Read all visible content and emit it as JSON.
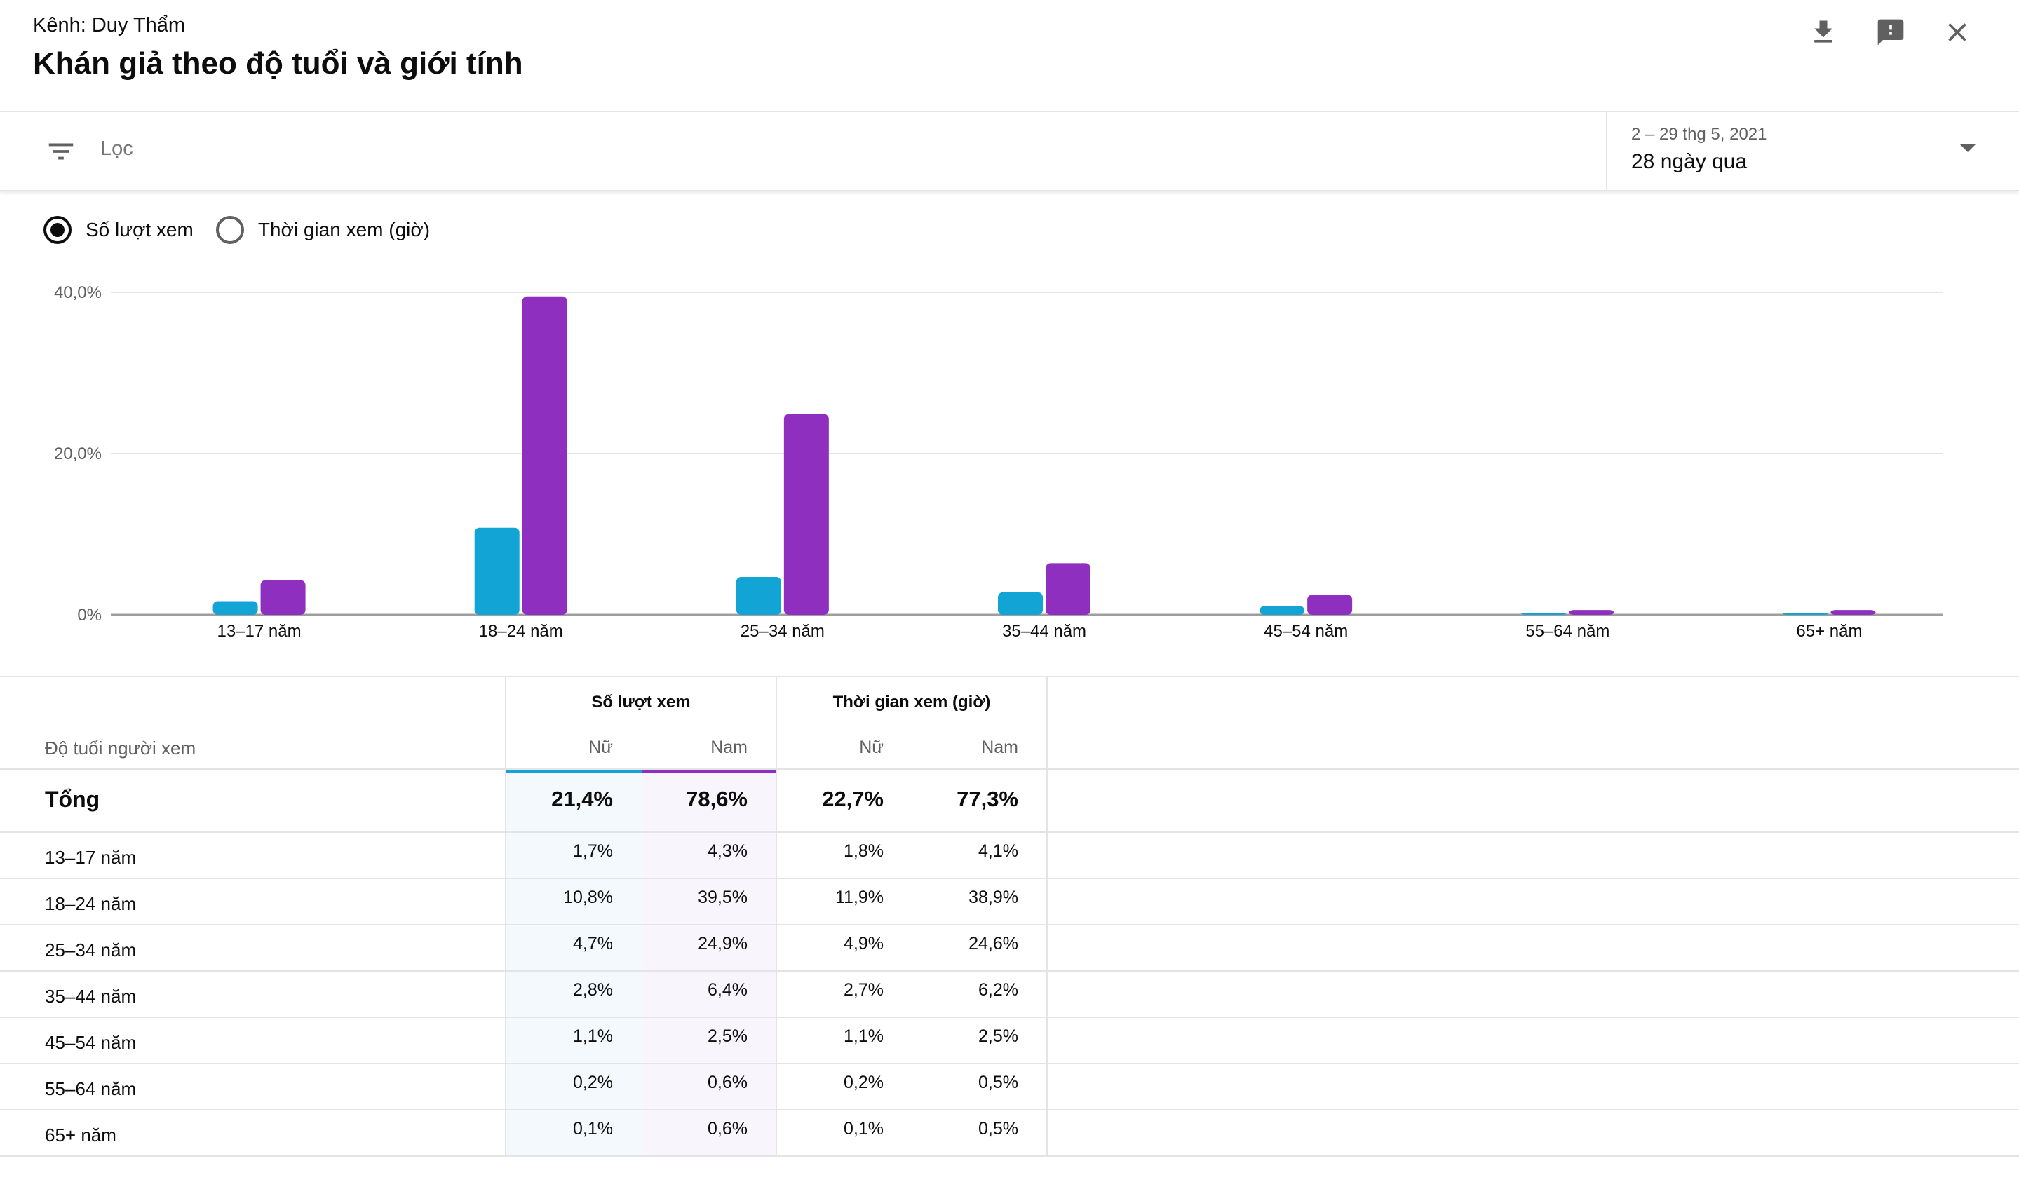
{
  "header": {
    "channel": "Kênh: Duy Thẩm",
    "title": "Khán giả theo độ tuổi và giới tính",
    "icons": [
      "download-icon",
      "feedback-icon",
      "close-icon"
    ]
  },
  "filter": {
    "placeholder": "Lọc",
    "date_range": "2 – 29 thg 5, 2021",
    "date_label": "28 ngày qua"
  },
  "metric_toggle": {
    "options": [
      "Số lượt xem",
      "Thời gian xem (giờ)"
    ],
    "selected": "Số lượt xem"
  },
  "colors": {
    "female": "#12a4d4",
    "male": "#8e2fc0"
  },
  "chart_data": {
    "type": "bar",
    "categories": [
      "13–17 năm",
      "18–24 năm",
      "25–34 năm",
      "35–44 năm",
      "45–54 năm",
      "55–64 năm",
      "65+ năm"
    ],
    "series": [
      {
        "values": [
          1.7,
          10.8,
          4.7,
          2.8,
          1.1,
          0.2,
          0.1
        ]
      },
      {
        "values": [
          4.3,
          39.5,
          24.9,
          6.4,
          2.5,
          0.6,
          0.6
        ]
      }
    ],
    "yticks": [
      "0%",
      "20,0%",
      "40,0%"
    ],
    "ylim": [
      0,
      40
    ],
    "grid": true,
    "legend": "none"
  },
  "table": {
    "row_header": "Độ tuổi người xem",
    "groups": [
      "Số lượt xem",
      "Thời gian xem (giờ)"
    ],
    "subheaders": [
      "Nữ",
      "Nam",
      "Nữ",
      "Nam"
    ],
    "total": {
      "label": "Tổng",
      "values": [
        "21,4%",
        "78,6%",
        "22,7%",
        "77,3%"
      ]
    },
    "rows": [
      {
        "label": "13–17 năm",
        "values": [
          "1,7%",
          "4,3%",
          "1,8%",
          "4,1%"
        ]
      },
      {
        "label": "18–24 năm",
        "values": [
          "10,8%",
          "39,5%",
          "11,9%",
          "38,9%"
        ]
      },
      {
        "label": "25–34 năm",
        "values": [
          "4,7%",
          "24,9%",
          "4,9%",
          "24,6%"
        ]
      },
      {
        "label": "35–44 năm",
        "values": [
          "2,8%",
          "6,4%",
          "2,7%",
          "6,2%"
        ]
      },
      {
        "label": "45–54 năm",
        "values": [
          "1,1%",
          "2,5%",
          "1,1%",
          "2,5%"
        ]
      },
      {
        "label": "55–64 năm",
        "values": [
          "0,2%",
          "0,6%",
          "0,2%",
          "0,5%"
        ]
      },
      {
        "label": "65+ năm",
        "values": [
          "0,1%",
          "0,6%",
          "0,1%",
          "0,5%"
        ]
      }
    ]
  }
}
